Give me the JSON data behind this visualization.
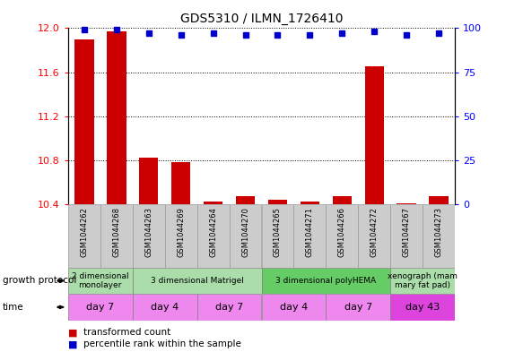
{
  "title": "GDS5310 / ILMN_1726410",
  "samples": [
    "GSM1044262",
    "GSM1044268",
    "GSM1044263",
    "GSM1044269",
    "GSM1044264",
    "GSM1044270",
    "GSM1044265",
    "GSM1044271",
    "GSM1044266",
    "GSM1044272",
    "GSM1044267",
    "GSM1044273"
  ],
  "transformed_count": [
    11.9,
    11.97,
    10.82,
    10.78,
    10.42,
    10.47,
    10.44,
    10.42,
    10.47,
    11.65,
    10.41,
    10.47
  ],
  "percentile_rank": [
    99,
    99,
    97,
    96,
    97,
    96,
    96,
    96,
    97,
    98,
    96,
    97
  ],
  "ylim_left": [
    10.4,
    12.0
  ],
  "ylim_right": [
    0,
    100
  ],
  "yticks_left": [
    10.4,
    10.8,
    11.2,
    11.6,
    12.0
  ],
  "yticks_right": [
    0,
    25,
    50,
    75,
    100
  ],
  "bar_color": "#cc0000",
  "dot_color": "#0000cc",
  "growth_protocol_groups": [
    {
      "label": "2 dimensional\nmonolayer",
      "start": 0,
      "end": 2,
      "color": "#aaddaa"
    },
    {
      "label": "3 dimensional Matrigel",
      "start": 2,
      "end": 6,
      "color": "#aaddaa"
    },
    {
      "label": "3 dimensional polyHEMA",
      "start": 6,
      "end": 10,
      "color": "#66cc66"
    },
    {
      "label": "xenograph (mam\nmary fat pad)",
      "start": 10,
      "end": 12,
      "color": "#aaddaa"
    }
  ],
  "time_groups": [
    {
      "label": "day 7",
      "start": 0,
      "end": 2,
      "color": "#ee88ee"
    },
    {
      "label": "day 4",
      "start": 2,
      "end": 4,
      "color": "#ee88ee"
    },
    {
      "label": "day 7",
      "start": 4,
      "end": 6,
      "color": "#ee88ee"
    },
    {
      "label": "day 4",
      "start": 6,
      "end": 8,
      "color": "#ee88ee"
    },
    {
      "label": "day 7",
      "start": 8,
      "end": 10,
      "color": "#ee88ee"
    },
    {
      "label": "day 43",
      "start": 10,
      "end": 12,
      "color": "#dd44dd"
    }
  ],
  "legend_items": [
    {
      "label": "transformed count",
      "color": "#cc0000"
    },
    {
      "label": "percentile rank within the sample",
      "color": "#0000cc"
    }
  ],
  "growth_protocol_label": "growth protocol",
  "time_label": "time",
  "sample_bg_color": "#cccccc",
  "sample_border_color": "#999999"
}
